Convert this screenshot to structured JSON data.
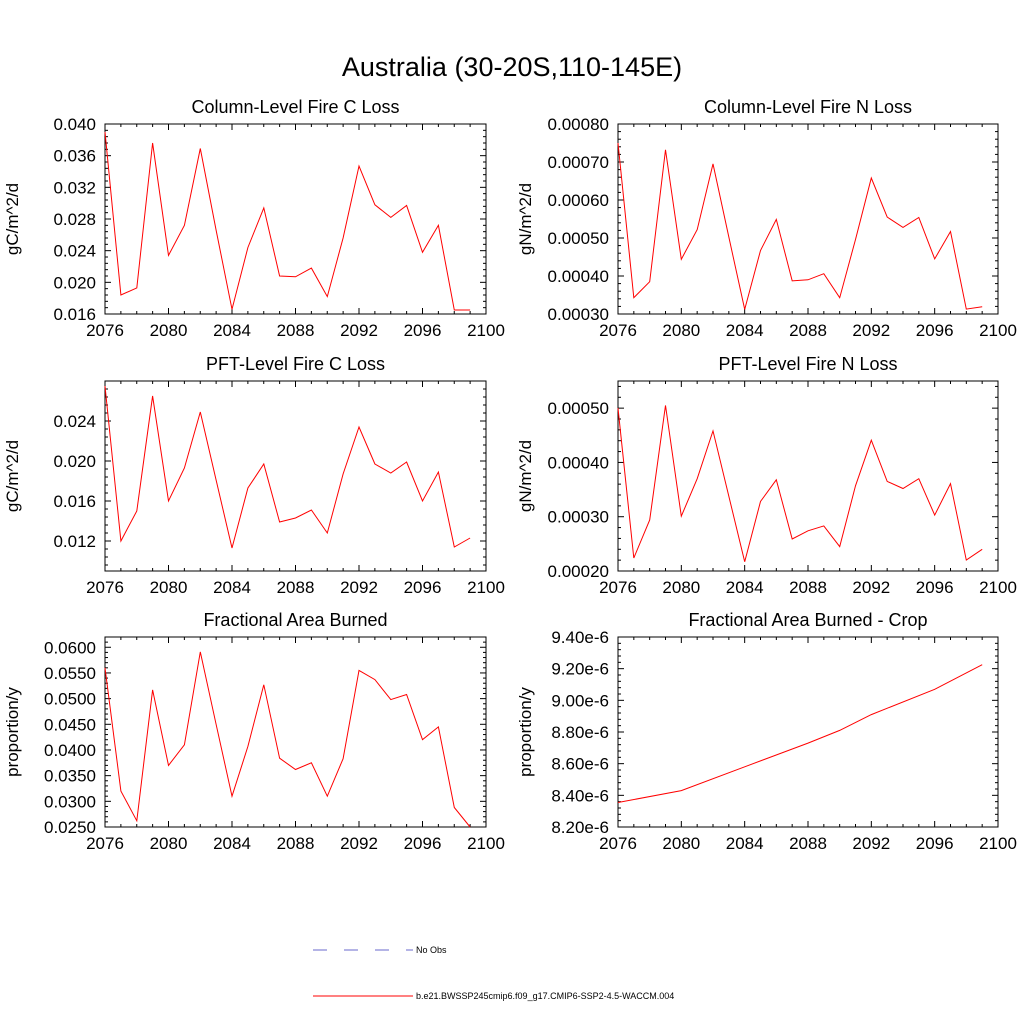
{
  "title": "Australia (30-20S,110-145E)",
  "legend": [
    {
      "label": "No Obs",
      "color": "#6a6acd",
      "dash": "dashed"
    },
    {
      "label": "b.e21.BWSSP245cmip6.f09_g17.CMIP6-SSP2-4.5-WACCM.004",
      "color": "#ff0000",
      "dash": "solid"
    }
  ],
  "chart_data": [
    {
      "type": "line",
      "title": "Column-Level Fire C Loss",
      "ylabel": "gC/m^2/d",
      "xlim": [
        2076,
        2100
      ],
      "ylim": [
        0.016,
        0.04
      ],
      "xticks": [
        2076,
        2080,
        2084,
        2088,
        2092,
        2096,
        2100
      ],
      "yticks": [
        0.016,
        0.02,
        0.024,
        0.028,
        0.032,
        0.036,
        0.04
      ],
      "ytick_labels": [
        "0.016",
        "0.020",
        "0.024",
        "0.028",
        "0.032",
        "0.036",
        "0.040"
      ],
      "series": [
        {
          "name": "b.e21.BWSSP245cmip6.f09_g17.CMIP6-SSP2-4.5-WACCM.004",
          "color": "#ff0000",
          "x": [
            2076,
            2077,
            2078,
            2079,
            2080,
            2081,
            2082,
            2083,
            2084,
            2085,
            2086,
            2087,
            2088,
            2089,
            2090,
            2091,
            2092,
            2093,
            2094,
            2095,
            2096,
            2097,
            2098,
            2099
          ],
          "values": [
            0.039,
            0.0184,
            0.0193,
            0.0376,
            0.0234,
            0.0272,
            0.0369,
            0.0266,
            0.0166,
            0.0244,
            0.0294,
            0.0208,
            0.0207,
            0.0218,
            0.0182,
            0.0256,
            0.0347,
            0.0298,
            0.0282,
            0.0297,
            0.0238,
            0.0272,
            0.0165,
            0.0165
          ]
        }
      ]
    },
    {
      "type": "line",
      "title": "Column-Level Fire N Loss",
      "ylabel": "gN/m^2/d",
      "xlim": [
        2076,
        2100
      ],
      "ylim": [
        0.0003,
        0.0008
      ],
      "xticks": [
        2076,
        2080,
        2084,
        2088,
        2092,
        2096,
        2100
      ],
      "yticks": [
        0.0003,
        0.0004,
        0.0005,
        0.0006,
        0.0007,
        0.0008
      ],
      "ytick_labels": [
        "0.00030",
        "0.00040",
        "0.00050",
        "0.00060",
        "0.00070",
        "0.00080"
      ],
      "series": [
        {
          "name": "b.e21.BWSSP245cmip6.f09_g17.CMIP6-SSP2-4.5-WACCM.004",
          "color": "#ff0000",
          "x": [
            2076,
            2077,
            2078,
            2079,
            2080,
            2081,
            2082,
            2083,
            2084,
            2085,
            2086,
            2087,
            2088,
            2089,
            2090,
            2091,
            2092,
            2093,
            2094,
            2095,
            2096,
            2097,
            2098,
            2099
          ],
          "values": [
            0.00075,
            0.000343,
            0.000385,
            0.000732,
            0.000444,
            0.000522,
            0.000695,
            0.000503,
            0.000312,
            0.000467,
            0.000549,
            0.000387,
            0.00039,
            0.000406,
            0.000343,
            0.000496,
            0.000658,
            0.000555,
            0.000528,
            0.000554,
            0.000445,
            0.000517,
            0.000313,
            0.000319
          ]
        }
      ]
    },
    {
      "type": "line",
      "title": "PFT-Level Fire C Loss",
      "ylabel": "gC/m^2/d",
      "xlim": [
        2076,
        2100
      ],
      "ylim": [
        0.009,
        0.028
      ],
      "xticks": [
        2076,
        2080,
        2084,
        2088,
        2092,
        2096,
        2100
      ],
      "yticks": [
        0.012,
        0.016,
        0.02,
        0.024
      ],
      "ytick_labels": [
        "0.012",
        "0.016",
        "0.020",
        "0.024"
      ],
      "series": [
        {
          "name": "b.e21.BWSSP245cmip6.f09_g17.CMIP6-SSP2-4.5-WACCM.004",
          "color": "#ff0000",
          "x": [
            2076,
            2077,
            2078,
            2079,
            2080,
            2081,
            2082,
            2083,
            2084,
            2085,
            2086,
            2087,
            2088,
            2089,
            2090,
            2091,
            2092,
            2093,
            2094,
            2095,
            2096,
            2097,
            2098,
            2099
          ],
          "values": [
            0.0275,
            0.012,
            0.015,
            0.0265,
            0.016,
            0.0193,
            0.0249,
            0.0181,
            0.0113,
            0.0173,
            0.0197,
            0.0139,
            0.0143,
            0.0151,
            0.0128,
            0.0187,
            0.0234,
            0.0197,
            0.0188,
            0.0199,
            0.016,
            0.0189,
            0.0114,
            0.0123
          ]
        }
      ]
    },
    {
      "type": "line",
      "title": "PFT-Level Fire N Loss",
      "ylabel": "gN/m^2/d",
      "xlim": [
        2076,
        2100
      ],
      "ylim": [
        0.0002,
        0.00055
      ],
      "xticks": [
        2076,
        2080,
        2084,
        2088,
        2092,
        2096,
        2100
      ],
      "yticks": [
        0.0002,
        0.0003,
        0.0004,
        0.0005
      ],
      "ytick_labels": [
        "0.00020",
        "0.00030",
        "0.00040",
        "0.00050"
      ],
      "series": [
        {
          "name": "b.e21.BWSSP245cmip6.f09_g17.CMIP6-SSP2-4.5-WACCM.004",
          "color": "#ff0000",
          "x": [
            2076,
            2077,
            2078,
            2079,
            2080,
            2081,
            2082,
            2083,
            2084,
            2085,
            2086,
            2087,
            2088,
            2089,
            2090,
            2091,
            2092,
            2093,
            2094,
            2095,
            2096,
            2097,
            2098,
            2099
          ],
          "values": [
            0.0005,
            0.000224,
            0.000294,
            0.000505,
            0.000301,
            0.00037,
            0.000458,
            0.000338,
            0.000217,
            0.000328,
            0.000368,
            0.000259,
            0.000274,
            0.000283,
            0.000245,
            0.000357,
            0.000441,
            0.000365,
            0.000352,
            0.00037,
            0.000303,
            0.000361,
            0.00022,
            0.00024
          ]
        }
      ]
    },
    {
      "type": "line",
      "title": "Fractional Area Burned",
      "ylabel": "proportion/y",
      "xlim": [
        2076,
        2100
      ],
      "ylim": [
        0.025,
        0.062
      ],
      "xticks": [
        2076,
        2080,
        2084,
        2088,
        2092,
        2096,
        2100
      ],
      "yticks": [
        0.025,
        0.03,
        0.035,
        0.04,
        0.045,
        0.05,
        0.055,
        0.06
      ],
      "ytick_labels": [
        "0.0250",
        "0.0300",
        "0.0350",
        "0.0400",
        "0.0450",
        "0.0500",
        "0.0550",
        "0.0600"
      ],
      "series": [
        {
          "name": "b.e21.BWSSP245cmip6.f09_g17.CMIP6-SSP2-4.5-WACCM.004",
          "color": "#ff0000",
          "x": [
            2076,
            2077,
            2078,
            2079,
            2080,
            2081,
            2082,
            2083,
            2084,
            2085,
            2086,
            2087,
            2088,
            2089,
            2090,
            2091,
            2092,
            2093,
            2094,
            2095,
            2096,
            2097,
            2098,
            2099
          ],
          "values": [
            0.056,
            0.032,
            0.0262,
            0.0517,
            0.037,
            0.041,
            0.0591,
            0.045,
            0.031,
            0.0407,
            0.0527,
            0.0384,
            0.0362,
            0.0375,
            0.031,
            0.0383,
            0.0555,
            0.0537,
            0.0498,
            0.0508,
            0.042,
            0.0445,
            0.0288,
            0.025
          ]
        }
      ]
    },
    {
      "type": "line",
      "title": "Fractional Area Burned - Crop",
      "ylabel": "proportion/y",
      "xlim": [
        2076,
        2100
      ],
      "ylim": [
        8.2e-06,
        9.4e-06
      ],
      "xticks": [
        2076,
        2080,
        2084,
        2088,
        2092,
        2096,
        2100
      ],
      "yticks": [
        8.2e-06,
        8.4e-06,
        8.6e-06,
        8.8e-06,
        9e-06,
        9.2e-06,
        9.4e-06
      ],
      "ytick_labels": [
        "8.20e-6",
        "8.40e-6",
        "8.60e-6",
        "8.80e-6",
        "9.00e-6",
        "9.20e-6",
        "9.40e-6"
      ],
      "series": [
        {
          "name": "b.e21.BWSSP245cmip6.f09_g17.CMIP6-SSP2-4.5-WACCM.004",
          "color": "#ff0000",
          "x": [
            2076,
            2080,
            2084,
            2088,
            2090,
            2092,
            2096,
            2099
          ],
          "values": [
            8.355e-06,
            8.43e-06,
            8.58e-06,
            8.73e-06,
            8.81e-06,
            8.91e-06,
            9.07e-06,
            9.225e-06
          ]
        }
      ]
    }
  ]
}
